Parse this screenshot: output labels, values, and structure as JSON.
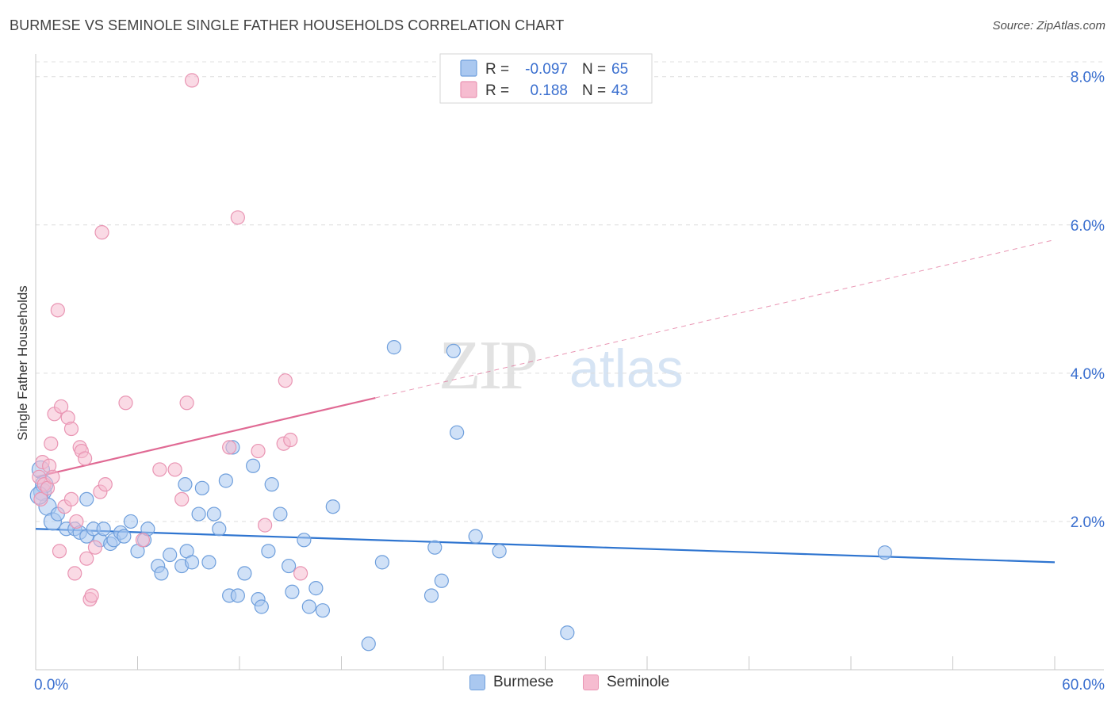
{
  "title": "BURMESE VS SEMINOLE SINGLE FATHER HOUSEHOLDS CORRELATION CHART",
  "source": "Source: ZipAtlas.com",
  "watermark": {
    "zip": "ZIP",
    "atlas": "atlas"
  },
  "colors": {
    "burmese_fill": "#aac8f0",
    "burmese_stroke": "#6f9fdc",
    "burmese_line": "#2f75d0",
    "seminole_fill": "#f6bcd0",
    "seminole_stroke": "#e995b3",
    "seminole_line": "#e06a94",
    "value_text": "#3a6fcf",
    "label_text": "#333333"
  },
  "legend": {
    "rows": [
      {
        "r_label": "R = ",
        "r_value": "-0.097",
        "n_label": "N = ",
        "n_value": "65"
      },
      {
        "r_label": "R = ",
        "r_value": "0.188",
        "n_label": "N = ",
        "n_value": "43"
      }
    ]
  },
  "bottom_legend": [
    "Burmese",
    "Seminole"
  ],
  "chart_data": {
    "type": "scatter",
    "title": "BURMESE VS SEMINOLE SINGLE FATHER HOUSEHOLDS CORRELATION CHART",
    "xlabel": "",
    "ylabel": "Single Father Households",
    "xlim": [
      0,
      60
    ],
    "ylim": [
      0,
      8.2
    ],
    "x_tick_labels": [
      "0.0%",
      "60.0%"
    ],
    "y_ticks": [
      2,
      4,
      6,
      8
    ],
    "y_tick_labels": [
      "2.0%",
      "4.0%",
      "6.0%",
      "8.0%"
    ],
    "grid": true,
    "legend_position": "top-center",
    "series": [
      {
        "name": "Burmese",
        "r": -0.097,
        "n": 65,
        "trend": {
          "x": [
            0,
            60
          ],
          "y": [
            1.9,
            1.45
          ],
          "dashed_from": null
        },
        "points": [
          [
            0.3,
            2.7
          ],
          [
            0.4,
            2.4
          ],
          [
            0.5,
            2.5
          ],
          [
            0.7,
            2.2
          ],
          [
            1.0,
            2.0
          ],
          [
            1.3,
            2.1
          ],
          [
            1.8,
            1.9
          ],
          [
            2.3,
            1.9
          ],
          [
            2.6,
            1.85
          ],
          [
            3.0,
            1.8
          ],
          [
            3.0,
            2.3
          ],
          [
            3.4,
            1.9
          ],
          [
            3.8,
            1.75
          ],
          [
            4.0,
            1.9
          ],
          [
            4.4,
            1.7
          ],
          [
            4.6,
            1.75
          ],
          [
            5.0,
            1.85
          ],
          [
            5.2,
            1.8
          ],
          [
            5.6,
            2.0
          ],
          [
            6.0,
            1.6
          ],
          [
            6.4,
            1.75
          ],
          [
            6.6,
            1.9
          ],
          [
            7.2,
            1.4
          ],
          [
            7.4,
            1.3
          ],
          [
            7.9,
            1.55
          ],
          [
            8.6,
            1.4
          ],
          [
            8.8,
            2.5
          ],
          [
            8.9,
            1.6
          ],
          [
            9.2,
            1.45
          ],
          [
            9.6,
            2.1
          ],
          [
            9.8,
            2.45
          ],
          [
            10.2,
            1.45
          ],
          [
            10.5,
            2.1
          ],
          [
            10.8,
            1.9
          ],
          [
            11.2,
            2.55
          ],
          [
            11.4,
            1.0
          ],
          [
            11.6,
            3.0
          ],
          [
            11.9,
            1.0
          ],
          [
            12.3,
            1.3
          ],
          [
            12.8,
            2.75
          ],
          [
            13.1,
            0.95
          ],
          [
            13.3,
            0.85
          ],
          [
            13.7,
            1.6
          ],
          [
            13.9,
            2.5
          ],
          [
            14.4,
            2.1
          ],
          [
            14.9,
            1.4
          ],
          [
            15.1,
            1.05
          ],
          [
            15.8,
            1.75
          ],
          [
            16.1,
            0.85
          ],
          [
            16.5,
            1.1
          ],
          [
            16.9,
            0.8
          ],
          [
            17.5,
            2.2
          ],
          [
            19.6,
            0.35
          ],
          [
            20.4,
            1.45
          ],
          [
            21.1,
            4.35
          ],
          [
            23.3,
            1.0
          ],
          [
            23.5,
            1.65
          ],
          [
            23.9,
            1.2
          ],
          [
            24.6,
            4.3
          ],
          [
            24.8,
            3.2
          ],
          [
            25.9,
            1.8
          ],
          [
            27.3,
            1.6
          ],
          [
            31.3,
            0.5
          ],
          [
            50.0,
            1.58
          ],
          [
            0.2,
            2.35
          ]
        ]
      },
      {
        "name": "Seminole",
        "r": 0.188,
        "n": 43,
        "trend": {
          "x": [
            0,
            60
          ],
          "y": [
            2.6,
            5.8
          ],
          "dashed_from": 20
        },
        "points": [
          [
            0.2,
            2.6
          ],
          [
            0.3,
            2.3
          ],
          [
            0.4,
            2.8
          ],
          [
            0.5,
            2.5
          ],
          [
            0.7,
            2.45
          ],
          [
            0.8,
            2.75
          ],
          [
            0.9,
            3.05
          ],
          [
            1.0,
            2.6
          ],
          [
            1.1,
            3.45
          ],
          [
            1.3,
            4.85
          ],
          [
            1.4,
            1.6
          ],
          [
            1.5,
            3.55
          ],
          [
            1.7,
            2.2
          ],
          [
            1.9,
            3.4
          ],
          [
            2.1,
            2.3
          ],
          [
            2.1,
            3.25
          ],
          [
            2.3,
            1.3
          ],
          [
            2.4,
            2.0
          ],
          [
            2.6,
            3.0
          ],
          [
            2.7,
            2.95
          ],
          [
            2.9,
            2.85
          ],
          [
            3.0,
            1.5
          ],
          [
            3.2,
            0.95
          ],
          [
            3.3,
            1.0
          ],
          [
            3.5,
            1.65
          ],
          [
            3.8,
            2.4
          ],
          [
            3.9,
            5.9
          ],
          [
            4.1,
            2.5
          ],
          [
            5.3,
            3.6
          ],
          [
            6.3,
            1.75
          ],
          [
            7.3,
            2.7
          ],
          [
            8.2,
            2.7
          ],
          [
            8.6,
            2.3
          ],
          [
            8.9,
            3.6
          ],
          [
            9.2,
            7.95
          ],
          [
            11.4,
            3.0
          ],
          [
            11.9,
            6.1
          ],
          [
            13.1,
            2.95
          ],
          [
            13.5,
            1.95
          ],
          [
            14.6,
            3.05
          ],
          [
            14.7,
            3.9
          ],
          [
            15.0,
            3.1
          ],
          [
            15.6,
            1.3
          ]
        ]
      }
    ]
  }
}
